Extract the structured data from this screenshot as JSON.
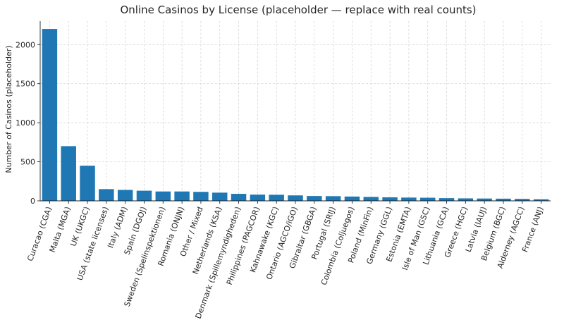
{
  "chart_data": {
    "type": "bar",
    "title": "Online Casinos by License (placeholder — replace with real counts)",
    "xlabel": "",
    "ylabel": "Number of Casinos (placeholder)",
    "ylim": [
      0,
      2300
    ],
    "yticks": [
      0,
      500,
      1000,
      1500,
      2000
    ],
    "grid": true,
    "bar_color": "#1f77b4",
    "categories": [
      "Curacao (CGA)",
      "Malta (MGA)",
      "UK (UKGC)",
      "USA (state licenses)",
      "Italy (ADM)",
      "Spain (DGOJ)",
      "Sweden (Spelinspektionen)",
      "Romania (ONJN)",
      "Other / Mixed",
      "Netherlands (KSA)",
      "Denmark (Spillemyndigheden)",
      "Philippines (PAGCOR)",
      "Kahnawake (KGC)",
      "Ontario (AGCO/iGO)",
      "Gibraltar (GBGA)",
      "Portugal (SRIJ)",
      "Colombia (Coljuegos)",
      "Poland (MinFin)",
      "Germany (GGL)",
      "Estonia (EMTA)",
      "Isle of Man (GSC)",
      "Lithuania (GCA)",
      "Greece (HGC)",
      "Latvia (IAUJ)",
      "Belgium (BGC)",
      "Alderney (AGCC)",
      "France (ANJ)"
    ],
    "values": [
      2200,
      700,
      450,
      150,
      140,
      130,
      120,
      120,
      115,
      105,
      90,
      80,
      78,
      70,
      62,
      60,
      55,
      50,
      45,
      42,
      40,
      35,
      32,
      30,
      28,
      25,
      20
    ]
  }
}
